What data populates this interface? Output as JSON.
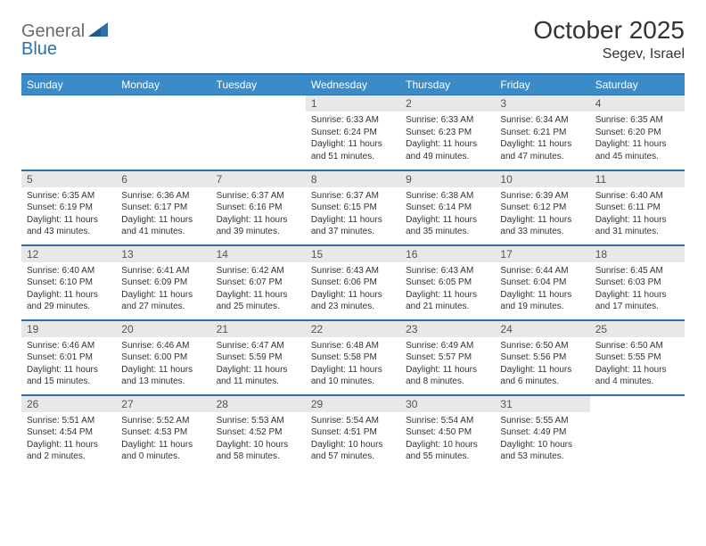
{
  "logo": {
    "word1": "General",
    "word2": "Blue"
  },
  "title": "October 2025",
  "location": "Segev, Israel",
  "header_color": "#3b8bc9",
  "border_color": "#2f6fab",
  "daynum_bg": "#e8e8e8",
  "weekdays": [
    "Sunday",
    "Monday",
    "Tuesday",
    "Wednesday",
    "Thursday",
    "Friday",
    "Saturday"
  ],
  "weeks": [
    [
      null,
      null,
      null,
      {
        "n": "1",
        "sr": "6:33 AM",
        "ss": "6:24 PM",
        "dl": "11 hours and 51 minutes."
      },
      {
        "n": "2",
        "sr": "6:33 AM",
        "ss": "6:23 PM",
        "dl": "11 hours and 49 minutes."
      },
      {
        "n": "3",
        "sr": "6:34 AM",
        "ss": "6:21 PM",
        "dl": "11 hours and 47 minutes."
      },
      {
        "n": "4",
        "sr": "6:35 AM",
        "ss": "6:20 PM",
        "dl": "11 hours and 45 minutes."
      }
    ],
    [
      {
        "n": "5",
        "sr": "6:35 AM",
        "ss": "6:19 PM",
        "dl": "11 hours and 43 minutes."
      },
      {
        "n": "6",
        "sr": "6:36 AM",
        "ss": "6:17 PM",
        "dl": "11 hours and 41 minutes."
      },
      {
        "n": "7",
        "sr": "6:37 AM",
        "ss": "6:16 PM",
        "dl": "11 hours and 39 minutes."
      },
      {
        "n": "8",
        "sr": "6:37 AM",
        "ss": "6:15 PM",
        "dl": "11 hours and 37 minutes."
      },
      {
        "n": "9",
        "sr": "6:38 AM",
        "ss": "6:14 PM",
        "dl": "11 hours and 35 minutes."
      },
      {
        "n": "10",
        "sr": "6:39 AM",
        "ss": "6:12 PM",
        "dl": "11 hours and 33 minutes."
      },
      {
        "n": "11",
        "sr": "6:40 AM",
        "ss": "6:11 PM",
        "dl": "11 hours and 31 minutes."
      }
    ],
    [
      {
        "n": "12",
        "sr": "6:40 AM",
        "ss": "6:10 PM",
        "dl": "11 hours and 29 minutes."
      },
      {
        "n": "13",
        "sr": "6:41 AM",
        "ss": "6:09 PM",
        "dl": "11 hours and 27 minutes."
      },
      {
        "n": "14",
        "sr": "6:42 AM",
        "ss": "6:07 PM",
        "dl": "11 hours and 25 minutes."
      },
      {
        "n": "15",
        "sr": "6:43 AM",
        "ss": "6:06 PM",
        "dl": "11 hours and 23 minutes."
      },
      {
        "n": "16",
        "sr": "6:43 AM",
        "ss": "6:05 PM",
        "dl": "11 hours and 21 minutes."
      },
      {
        "n": "17",
        "sr": "6:44 AM",
        "ss": "6:04 PM",
        "dl": "11 hours and 19 minutes."
      },
      {
        "n": "18",
        "sr": "6:45 AM",
        "ss": "6:03 PM",
        "dl": "11 hours and 17 minutes."
      }
    ],
    [
      {
        "n": "19",
        "sr": "6:46 AM",
        "ss": "6:01 PM",
        "dl": "11 hours and 15 minutes."
      },
      {
        "n": "20",
        "sr": "6:46 AM",
        "ss": "6:00 PM",
        "dl": "11 hours and 13 minutes."
      },
      {
        "n": "21",
        "sr": "6:47 AM",
        "ss": "5:59 PM",
        "dl": "11 hours and 11 minutes."
      },
      {
        "n": "22",
        "sr": "6:48 AM",
        "ss": "5:58 PM",
        "dl": "11 hours and 10 minutes."
      },
      {
        "n": "23",
        "sr": "6:49 AM",
        "ss": "5:57 PM",
        "dl": "11 hours and 8 minutes."
      },
      {
        "n": "24",
        "sr": "6:50 AM",
        "ss": "5:56 PM",
        "dl": "11 hours and 6 minutes."
      },
      {
        "n": "25",
        "sr": "6:50 AM",
        "ss": "5:55 PM",
        "dl": "11 hours and 4 minutes."
      }
    ],
    [
      {
        "n": "26",
        "sr": "5:51 AM",
        "ss": "4:54 PM",
        "dl": "11 hours and 2 minutes."
      },
      {
        "n": "27",
        "sr": "5:52 AM",
        "ss": "4:53 PM",
        "dl": "11 hours and 0 minutes."
      },
      {
        "n": "28",
        "sr": "5:53 AM",
        "ss": "4:52 PM",
        "dl": "10 hours and 58 minutes."
      },
      {
        "n": "29",
        "sr": "5:54 AM",
        "ss": "4:51 PM",
        "dl": "10 hours and 57 minutes."
      },
      {
        "n": "30",
        "sr": "5:54 AM",
        "ss": "4:50 PM",
        "dl": "10 hours and 55 minutes."
      },
      {
        "n": "31",
        "sr": "5:55 AM",
        "ss": "4:49 PM",
        "dl": "10 hours and 53 minutes."
      },
      null
    ]
  ],
  "labels": {
    "sunrise": "Sunrise:",
    "sunset": "Sunset:",
    "daylight": "Daylight:"
  }
}
